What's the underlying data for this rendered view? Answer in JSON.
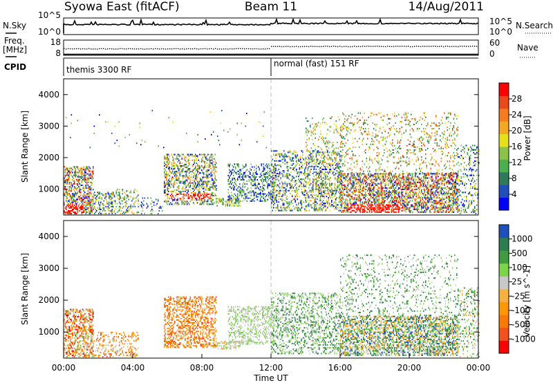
{
  "header": {
    "station": "Syowa East (fitACF)",
    "beam": "Beam 11",
    "date": "14/Aug/2011"
  },
  "left_labels": {
    "nsky": "N.Sky",
    "freq": "Freq.",
    "mhz": "[MHz]",
    "cpid": "CPID"
  },
  "right_labels": {
    "nsearch": "N.Search",
    "nave": "Nave"
  },
  "noise_panel": {
    "left_ticks": [
      "10^5",
      "10^0"
    ],
    "right_ticks": [
      "10^5",
      "10^0"
    ]
  },
  "freq_panel": {
    "left_ticks": [
      "18",
      "8"
    ],
    "right_ticks": [
      "60",
      "0"
    ]
  },
  "cpid_panel": {
    "segments": [
      {
        "label": "themis 3300 RF",
        "start_hour": 0
      },
      {
        "label": "normal (fast) 151 RF",
        "start_hour": 12
      }
    ]
  },
  "x_axis": {
    "title": "Time UT",
    "ticks": [
      "00:00",
      "04:00",
      "08:00",
      "12:00",
      "16:00",
      "20:00",
      "00:00"
    ]
  },
  "chart_data": [
    {
      "type": "heatmap",
      "title": "Power",
      "ylabel": "Slant Range [km]",
      "xlabel": "Time UT",
      "xlim_hours": [
        0,
        24
      ],
      "ylim": [
        180,
        4500
      ],
      "y_ticks": [
        "1000",
        "2000",
        "3000",
        "4000"
      ],
      "colorbar": {
        "label": "Power [dB]",
        "ticks": [
          "28",
          "24",
          "20",
          "16",
          "12",
          "8",
          "4"
        ],
        "range": [
          0,
          30
        ],
        "colors": [
          "#0000ff",
          "#1f4fb8",
          "#2f7a5a",
          "#4caf50",
          "#8bc34a",
          "#e8e017",
          "#f5a623",
          "#f47b20",
          "#e94a1b",
          "#ff0000"
        ]
      },
      "regions": [
        {
          "t": [
            0.0,
            1.7
          ],
          "r": [
            200,
            1700
          ],
          "p": 0.55,
          "lvl": [
            0,
            9
          ],
          "hot": [
            0.0,
            1.2,
            200,
            500
          ]
        },
        {
          "t": [
            1.7,
            2.8
          ],
          "r": [
            200,
            900
          ],
          "p": 0.35,
          "lvl": [
            0,
            6
          ]
        },
        {
          "t": [
            2.6,
            4.3
          ],
          "r": [
            200,
            1000
          ],
          "p": 0.28,
          "lvl": [
            1,
            6
          ]
        },
        {
          "t": [
            4.3,
            5.8
          ],
          "r": [
            200,
            700
          ],
          "p": 0.15,
          "lvl": [
            0,
            4
          ]
        },
        {
          "t": [
            5.8,
            8.8
          ],
          "r": [
            500,
            2100
          ],
          "p": 0.45,
          "lvl": [
            0,
            7
          ],
          "hot": [
            6.0,
            8.5,
            650,
            850
          ]
        },
        {
          "t": [
            8.8,
            10.2
          ],
          "r": [
            450,
            700
          ],
          "p": 0.45,
          "lvl": [
            2,
            6
          ]
        },
        {
          "t": [
            9.5,
            12.3
          ],
          "r": [
            600,
            1800
          ],
          "p": 0.35,
          "lvl": [
            0,
            4
          ]
        },
        {
          "t": [
            12.0,
            16.0
          ],
          "r": [
            300,
            2200
          ],
          "p": 0.32,
          "lvl": [
            0,
            6
          ]
        },
        {
          "t": [
            14.0,
            16.2
          ],
          "r": [
            300,
            3300
          ],
          "p": 0.12,
          "lvl": [
            2,
            7
          ]
        },
        {
          "t": [
            16.0,
            22.8
          ],
          "r": [
            250,
            1500
          ],
          "p": 0.55,
          "lvl": [
            0,
            9
          ],
          "hot": [
            16.3,
            19.6,
            250,
            500
          ]
        },
        {
          "t": [
            16.0,
            22.8
          ],
          "r": [
            1500,
            3400
          ],
          "p": 0.14,
          "lvl": [
            2,
            8
          ]
        },
        {
          "t": [
            22.8,
            24.0
          ],
          "r": [
            200,
            2400
          ],
          "p": 0.22,
          "lvl": [
            0,
            5
          ]
        },
        {
          "t": [
            0.0,
            12.0
          ],
          "r": [
            2300,
            3500
          ],
          "p": 0.01,
          "lvl": [
            0,
            5
          ]
        }
      ]
    },
    {
      "type": "heatmap",
      "title": "Velocity",
      "ylabel": "Slant Range [km]",
      "xlabel": "Time UT",
      "xlim_hours": [
        0,
        24
      ],
      "ylim": [
        180,
        4500
      ],
      "y_ticks": [
        "1000",
        "2000",
        "3000",
        "4000"
      ],
      "colorbar": {
        "label": "Velocity [m s^-1]",
        "ticks": [
          "1000",
          "500",
          "100",
          "25",
          "-25",
          "-100",
          "-500",
          "-1000"
        ],
        "range": [
          -1200,
          1200
        ],
        "colors": [
          "#ff0000",
          "#f4511e",
          "#f57c00",
          "#ff9800",
          "#f5b041",
          "#c8c8c8",
          "#7cd44a",
          "#3f9c3f",
          "#2e7d52",
          "#1f4fb8"
        ]
      },
      "regions": [
        {
          "t": [
            0.0,
            1.7
          ],
          "r": [
            200,
            1700
          ],
          "p": 0.5,
          "lvl": [
            0,
            6
          ]
        },
        {
          "t": [
            1.7,
            4.3
          ],
          "r": [
            200,
            1000
          ],
          "p": 0.28,
          "lvl": [
            1,
            5
          ]
        },
        {
          "t": [
            5.8,
            8.8
          ],
          "r": [
            500,
            2100
          ],
          "p": 0.45,
          "lvl": [
            1,
            4
          ],
          "hot": [
            6.0,
            8.5,
            650,
            850
          ]
        },
        {
          "t": [
            8.8,
            10.2
          ],
          "r": [
            450,
            700
          ],
          "p": 0.45,
          "lvl": [
            4,
            6
          ]
        },
        {
          "t": [
            9.5,
            12.3
          ],
          "r": [
            600,
            1800
          ],
          "p": 0.35,
          "lvl": [
            5,
            6
          ]
        },
        {
          "t": [
            12.0,
            16.0
          ],
          "r": [
            300,
            2200
          ],
          "p": 0.32,
          "lvl": [
            5,
            8
          ]
        },
        {
          "t": [
            16.0,
            22.8
          ],
          "r": [
            250,
            1500
          ],
          "p": 0.55,
          "lvl": [
            3,
            9
          ]
        },
        {
          "t": [
            16.0,
            22.8
          ],
          "r": [
            1500,
            3400
          ],
          "p": 0.14,
          "lvl": [
            5,
            8
          ]
        },
        {
          "t": [
            22.8,
            24.0
          ],
          "r": [
            200,
            2400
          ],
          "p": 0.22,
          "lvl": [
            4,
            8
          ]
        }
      ]
    }
  ]
}
